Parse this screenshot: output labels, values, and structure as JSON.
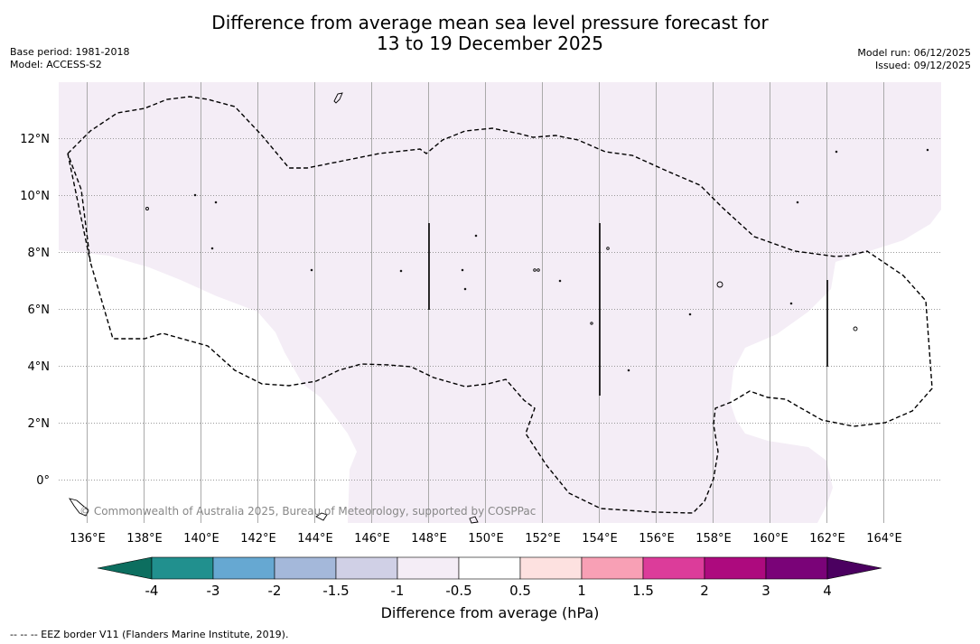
{
  "title": {
    "line1": "Difference from average mean sea level pressure forecast for",
    "line2": "13 to 19 December 2025"
  },
  "meta_left": {
    "base_period": "Base period: 1981-2018",
    "model": "Model: ACCESS-S2"
  },
  "meta_right": {
    "model_run": "Model run: 06/12/2025",
    "issued": "Issued: 09/12/2025"
  },
  "map": {
    "lon_ticks": [
      "136°E",
      "138°E",
      "140°E",
      "142°E",
      "144°E",
      "146°E",
      "148°E",
      "150°E",
      "152°E",
      "154°E",
      "156°E",
      "158°E",
      "160°E",
      "162°E",
      "164°E"
    ],
    "lat_ticks": [
      "12°N",
      "10°N",
      "8°N",
      "6°N",
      "4°N",
      "2°N",
      "0°"
    ],
    "copyright": "© Commonwealth of Australia 2025, Bureau of Meteorology, supported by COSPPac",
    "fill_colour": "#f4edf6"
  },
  "colorbar": {
    "labels": [
      "-4",
      "-3",
      "-2",
      "-1.5",
      "-1",
      "-0.5",
      "0.5",
      "1",
      "1.5",
      "2",
      "3",
      "4"
    ],
    "colours": [
      "#0c6e5f",
      "#21908e",
      "#66a8d2",
      "#a4b8da",
      "#d0d0e6",
      "#f4edf6",
      "#ffffff",
      "#fde1e0",
      "#f8a0b5",
      "#dc3c9a",
      "#ad0a7e",
      "#7a0378",
      "#4b0060"
    ],
    "title": "Difference from average (hPa)"
  },
  "footer": "--  --  -- EEZ border V11 (Flanders Marine Institute, 2019)."
}
